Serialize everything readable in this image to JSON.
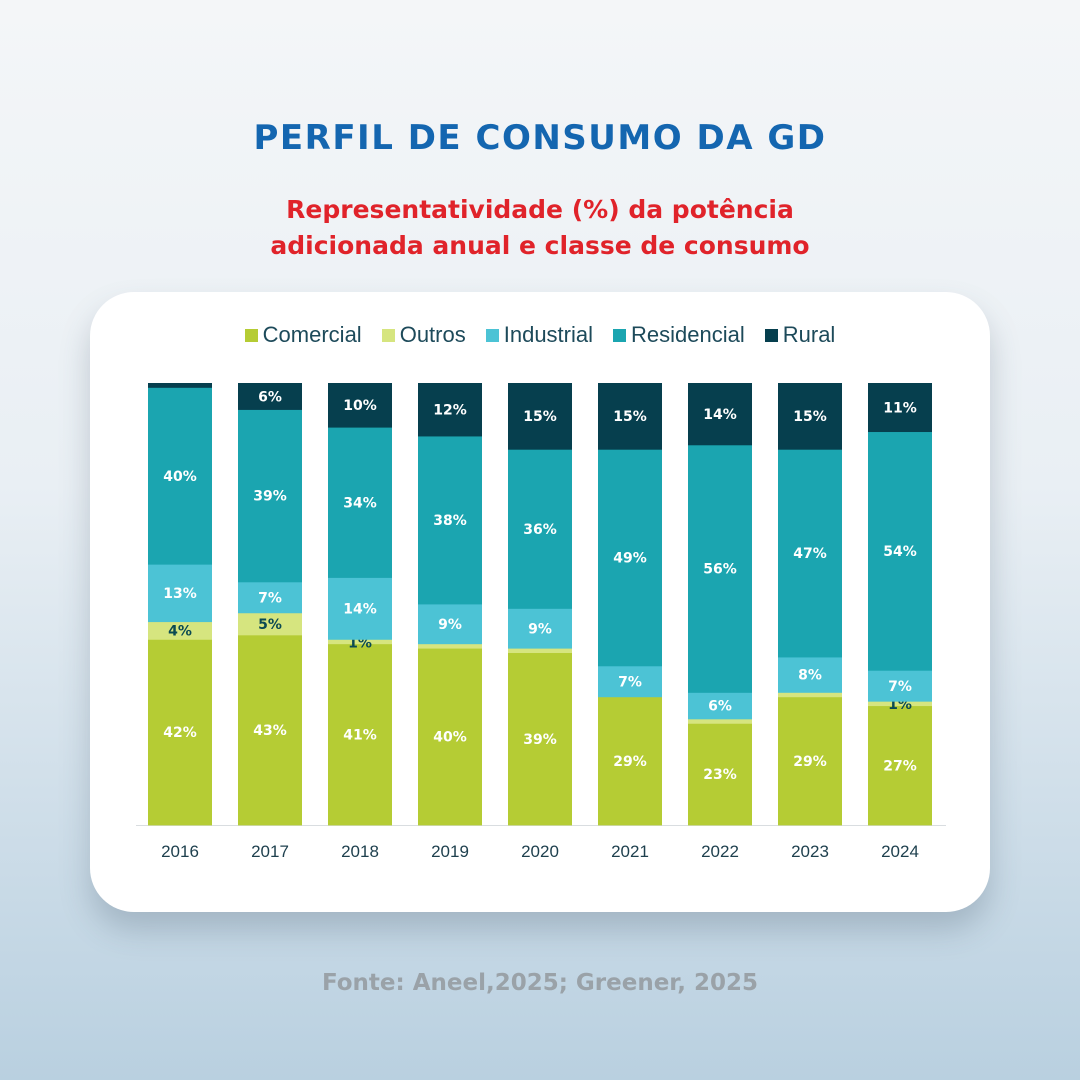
{
  "title": "PERFIL DE CONSUMO DA GD",
  "subtitle_line1": "Representatividade (%) da potência",
  "subtitle_line2": "adicionada anual e classe de consumo",
  "source": "Fonte: Aneel,2025; Greener, 2025",
  "chart_data": {
    "type": "bar",
    "stacked": true,
    "categories": [
      "2016",
      "2017",
      "2018",
      "2019",
      "2020",
      "2021",
      "2022",
      "2023",
      "2024"
    ],
    "ylim": [
      0,
      100
    ],
    "grid": false,
    "legend_position": "top",
    "series": [
      {
        "name": "Comercial",
        "color": "#b5cc34",
        "values": [
          42,
          43,
          41,
          40,
          39,
          29,
          23,
          29,
          27
        ],
        "labels": [
          "42%",
          "43%",
          "41%",
          "40%",
          "39%",
          "29%",
          "23%",
          "29%",
          "27%"
        ]
      },
      {
        "name": "Outros",
        "color": "#d6e57f",
        "values": [
          4,
          5,
          1,
          1,
          1,
          0,
          1,
          1,
          1
        ],
        "labels": [
          "4%",
          "5%",
          "1%",
          "",
          "",
          "",
          "",
          "",
          "1%"
        ]
      },
      {
        "name": "Industrial",
        "color": "#4cc3d5",
        "values": [
          13,
          7,
          14,
          9,
          9,
          7,
          6,
          8,
          7
        ],
        "labels": [
          "13%",
          "7%",
          "14%",
          "9%",
          "9%",
          "7%",
          "6%",
          "8%",
          "7%"
        ]
      },
      {
        "name": "Residencial",
        "color": "#1ba5b0",
        "values": [
          40,
          39,
          34,
          38,
          36,
          49,
          56,
          47,
          54
        ],
        "labels": [
          "40%",
          "39%",
          "34%",
          "38%",
          "36%",
          "49%",
          "56%",
          "47%",
          "54%"
        ]
      },
      {
        "name": "Rural",
        "color": "#063f4e",
        "values": [
          1,
          6,
          10,
          12,
          15,
          15,
          14,
          15,
          11
        ],
        "labels": [
          "",
          "6%",
          "10%",
          "12%",
          "15%",
          "15%",
          "14%",
          "15%",
          "11%"
        ]
      }
    ]
  }
}
